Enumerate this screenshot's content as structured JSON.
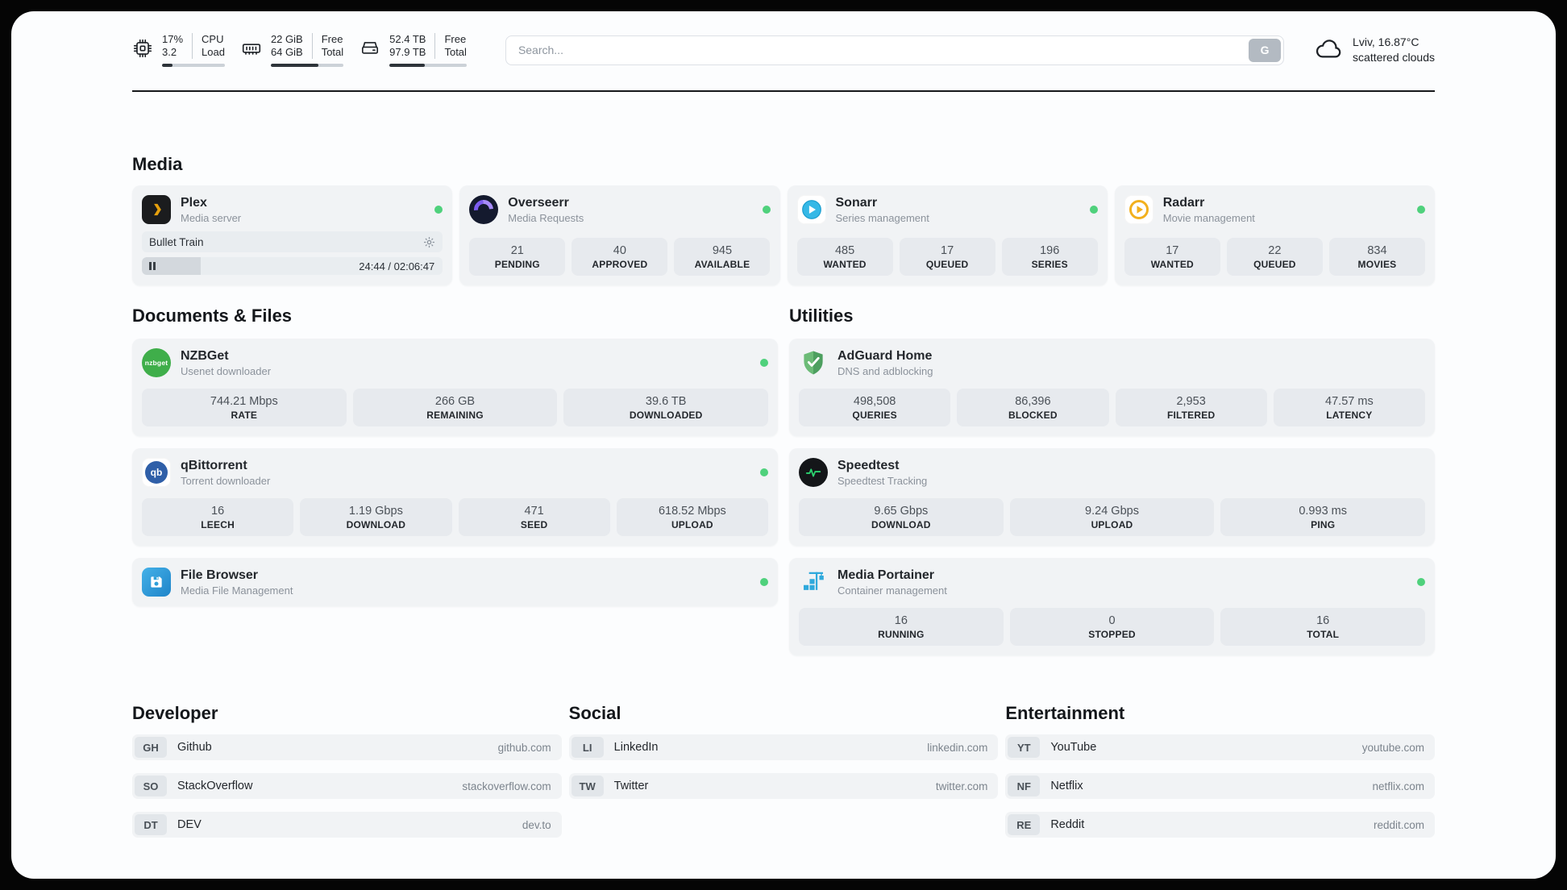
{
  "topbar": {
    "cpu": {
      "value1": "17%",
      "value2": "3.2",
      "label1": "CPU",
      "label2": "Load",
      "progress": 17
    },
    "ram": {
      "value1": "22 GiB",
      "value2": "64 GiB",
      "label1": "Free",
      "label2": "Total",
      "progress": 66
    },
    "disk": {
      "value1": "52.4 TB",
      "value2": "97.9 TB",
      "label1": "Free",
      "label2": "Total",
      "progress": 46
    },
    "search": {
      "placeholder": "Search...",
      "button_label": "G"
    },
    "weather": {
      "location": "Lviv, 16.87°C",
      "condition": "scattered clouds"
    }
  },
  "sections": {
    "media": {
      "title": "Media"
    },
    "documents": {
      "title": "Documents & Files"
    },
    "utilities": {
      "title": "Utilities"
    },
    "developer": {
      "title": "Developer"
    },
    "social": {
      "title": "Social"
    },
    "entertainment": {
      "title": "Entertainment"
    }
  },
  "apps": {
    "plex": {
      "name": "Plex",
      "subtitle": "Media server",
      "now_playing": "Bullet Train",
      "time": "24:44 / 02:06:47",
      "progress": 19.5,
      "online": true
    },
    "overseerr": {
      "name": "Overseerr",
      "subtitle": "Media Requests",
      "online": true,
      "stats": [
        {
          "value": "21",
          "label": "PENDING"
        },
        {
          "value": "40",
          "label": "APPROVED"
        },
        {
          "value": "945",
          "label": "AVAILABLE"
        }
      ]
    },
    "sonarr": {
      "name": "Sonarr",
      "subtitle": "Series management",
      "online": true,
      "stats": [
        {
          "value": "485",
          "label": "WANTED"
        },
        {
          "value": "17",
          "label": "QUEUED"
        },
        {
          "value": "196",
          "label": "SERIES"
        }
      ]
    },
    "radarr": {
      "name": "Radarr",
      "subtitle": "Movie management",
      "online": true,
      "stats": [
        {
          "value": "17",
          "label": "WANTED"
        },
        {
          "value": "22",
          "label": "QUEUED"
        },
        {
          "value": "834",
          "label": "MOVIES"
        }
      ]
    },
    "nzbget": {
      "name": "NZBGet",
      "subtitle": "Usenet downloader",
      "icon_text": "nzbget",
      "online": true,
      "stats": [
        {
          "value": "744.21 Mbps",
          "label": "RATE"
        },
        {
          "value": "266 GB",
          "label": "REMAINING"
        },
        {
          "value": "39.6 TB",
          "label": "DOWNLOADED"
        }
      ]
    },
    "qbittorrent": {
      "name": "qBittorrent",
      "subtitle": "Torrent downloader",
      "icon_text": "qb",
      "online": true,
      "stats": [
        {
          "value": "16",
          "label": "LEECH"
        },
        {
          "value": "1.19 Gbps",
          "label": "DOWNLOAD"
        },
        {
          "value": "471",
          "label": "SEED"
        },
        {
          "value": "618.52 Mbps",
          "label": "UPLOAD"
        }
      ]
    },
    "filebrowser": {
      "name": "File Browser",
      "subtitle": "Media File Management",
      "online": true
    },
    "adguard": {
      "name": "AdGuard Home",
      "subtitle": "DNS and adblocking",
      "stats": [
        {
          "value": "498,508",
          "label": "QUERIES"
        },
        {
          "value": "86,396",
          "label": "BLOCKED"
        },
        {
          "value": "2,953",
          "label": "FILTERED"
        },
        {
          "value": "47.57 ms",
          "label": "LATENCY"
        }
      ]
    },
    "speedtest": {
      "name": "Speedtest",
      "subtitle": "Speedtest Tracking",
      "stats": [
        {
          "value": "9.65 Gbps",
          "label": "DOWNLOAD"
        },
        {
          "value": "9.24 Gbps",
          "label": "UPLOAD"
        },
        {
          "value": "0.993 ms",
          "label": "PING"
        }
      ]
    },
    "portainer": {
      "name": "Media Portainer",
      "subtitle": "Container management",
      "online": true,
      "stats": [
        {
          "value": "16",
          "label": "RUNNING"
        },
        {
          "value": "0",
          "label": "STOPPED"
        },
        {
          "value": "16",
          "label": "TOTAL"
        }
      ]
    }
  },
  "links": {
    "developer": [
      {
        "abbr": "GH",
        "name": "Github",
        "url": "github.com"
      },
      {
        "abbr": "SO",
        "name": "StackOverflow",
        "url": "stackoverflow.com"
      },
      {
        "abbr": "DT",
        "name": "DEV",
        "url": "dev.to"
      }
    ],
    "social": [
      {
        "abbr": "LI",
        "name": "LinkedIn",
        "url": "linkedin.com"
      },
      {
        "abbr": "TW",
        "name": "Twitter",
        "url": "twitter.com"
      }
    ],
    "entertainment": [
      {
        "abbr": "YT",
        "name": "YouTube",
        "url": "youtube.com"
      },
      {
        "abbr": "NF",
        "name": "Netflix",
        "url": "netflix.com"
      },
      {
        "abbr": "RE",
        "name": "Reddit",
        "url": "reddit.com"
      }
    ]
  },
  "colors": {
    "status_online": "#4fd17c",
    "plex_yellow": "#e5a00d",
    "card_bg": "#f1f3f5",
    "stat_bg": "#e7eaee",
    "adguard_green": "#5fb06d",
    "portainer_blue": "#2fa9dc"
  }
}
